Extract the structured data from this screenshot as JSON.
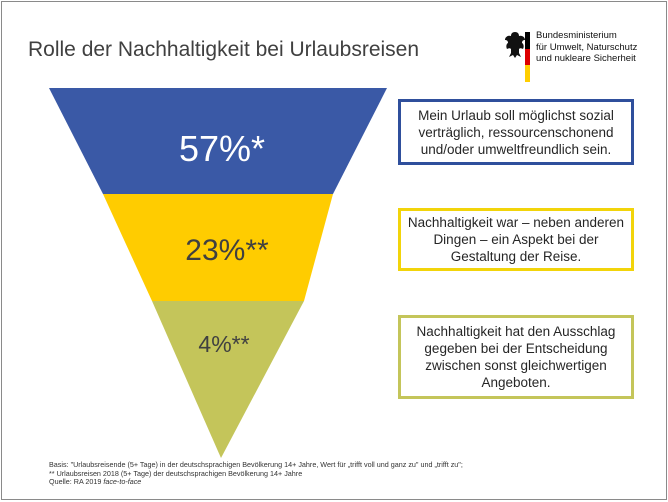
{
  "title": "Rolle der Nachhaltigkeit bei Urlaubsreisen",
  "logo": {
    "lines": [
      "Bundesministerium",
      "für Umwelt, Naturschutz",
      "und nukleare Sicherheit"
    ],
    "icon": "federal-eagle-icon",
    "flag_colors": [
      "#000000",
      "#dd0000",
      "#ffce00"
    ]
  },
  "funnel": {
    "levels": [
      {
        "value": 57,
        "label": "57%*",
        "color": "#3a59a6",
        "description": "Mein Urlaub soll möglichst sozial verträglich, ressourcenschonend und/oder umweltfreundlich sein."
      },
      {
        "value": 23,
        "label": "23%**",
        "color": "#ffcc00",
        "description": "Nachhaltigkeit war – neben anderen Dingen – ein Aspekt bei der Gestaltung der Reise."
      },
      {
        "value": 4,
        "label": "4%**",
        "color": "#c4c55a",
        "description": "Nachhaltigkeit hat den Ausschlag gegeben bei der Entscheidung zwischen sonst gleichwertigen Angeboten."
      }
    ]
  },
  "footer": {
    "line1": "Basis: \"Urlaubsreisende (5+ Tage) in der deutschsprachigen Bevölkerung 14+ Jahre, Wert für „trifft voll und ganz zu\" und „trifft zu\";",
    "line2": "** Urlaubsreisen 2018 (5+ Tage) der deutschsprachigen Bevölkerung 14+ Jahre",
    "source_prefix": "Quelle: RA 2019 ",
    "source_italic": "face-to-face"
  }
}
